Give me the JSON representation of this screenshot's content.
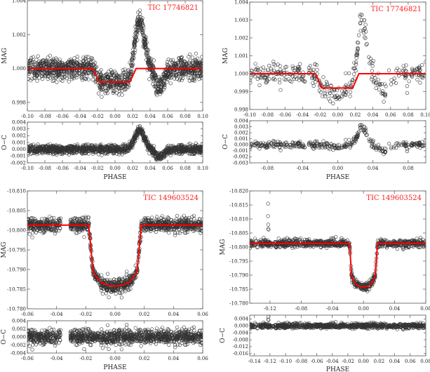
{
  "chart_data": [
    {
      "type": "scatter",
      "title": "TIC 17746821",
      "xlabel": "PHASE",
      "ylabel": "MAG",
      "res_ylabel": "O−C",
      "xlim": [
        -0.1,
        0.1
      ],
      "xticks": [
        -0.1,
        -0.08,
        -0.06,
        -0.04,
        -0.02,
        0.0,
        0.02,
        0.04,
        0.06,
        0.08,
        0.1
      ],
      "res_xticks": [
        -0.1,
        -0.08,
        -0.06,
        -0.04,
        -0.02,
        0.0,
        0.02,
        0.04,
        0.06,
        0.08,
        0.1
      ],
      "xdecimals": 2,
      "ylim": [
        1.004,
        0.9975
      ],
      "yticks": [
        1.004,
        1.002,
        1.0,
        0.998
      ],
      "ydecimals": 3,
      "res_ylim": [
        0.004,
        -0.002
      ],
      "res_yticks": [
        0.004,
        0.003,
        0.002,
        0.001,
        0.0,
        -0.001,
        -0.002
      ],
      "res_ydecimals": 3,
      "model": {
        "x": [
          -0.1,
          -0.025,
          -0.018,
          0.017,
          0.024,
          0.1
        ],
        "y": [
          1.0,
          1.0,
          0.9992,
          0.9992,
          1.0,
          1.0
        ]
      },
      "observed": {
        "n": 1400,
        "noise_sigma": 0.00032,
        "features": [
          {
            "center": 0.028,
            "amplitude": 0.0028,
            "width": 0.0055
          },
          {
            "center": 0.051,
            "amplitude": -0.0011,
            "width": 0.005
          }
        ],
        "gaps": [],
        "outliers": []
      },
      "model_color": "#ff0000"
    },
    {
      "type": "scatter",
      "title": "TIC 17746821",
      "xlabel": "PHASE",
      "ylabel": "MAG",
      "res_ylabel": "O−C",
      "xlim": [
        -0.1,
        0.1
      ],
      "xticks": [
        -0.1,
        -0.08,
        -0.06,
        -0.04,
        -0.02,
        0.0,
        0.02,
        0.04,
        0.06,
        0.08,
        0.1
      ],
      "res_xticks": [
        -0.08,
        -0.04,
        0.0,
        0.04,
        0.08
      ],
      "xdecimals": 2,
      "ylim": [
        1.004,
        0.998
      ],
      "yticks": [
        1.004,
        1.003,
        1.002,
        1.001,
        1.0,
        0.999,
        0.998
      ],
      "ydecimals": 3,
      "res_ylim": [
        0.004,
        -0.003
      ],
      "res_yticks": [
        0.004,
        0.003,
        0.002,
        0.001,
        0.0,
        -0.001,
        -0.002,
        -0.003
      ],
      "res_ydecimals": 3,
      "model": {
        "x": [
          -0.1,
          -0.025,
          -0.018,
          0.017,
          0.024,
          0.1
        ],
        "y": [
          1.0,
          1.0,
          0.9992,
          0.9992,
          1.0,
          1.0
        ]
      },
      "observed": {
        "n": 360,
        "noise_sigma": 0.0003,
        "features": [
          {
            "center": 0.028,
            "amplitude": 0.0028,
            "width": 0.0055
          },
          {
            "center": 0.051,
            "amplitude": -0.0011,
            "width": 0.005
          },
          {
            "center": 0.0,
            "amplitude": -0.0004,
            "width": 0.006
          }
        ],
        "gaps": [],
        "outliers": []
      },
      "model_color": "#ff0000"
    },
    {
      "type": "scatter",
      "title": "TIC 149603524",
      "xlabel": "PHASE",
      "ylabel": "MAG",
      "res_ylabel": "O−C",
      "xlim": [
        -0.06,
        0.06
      ],
      "xticks": [
        -0.06,
        -0.04,
        -0.02,
        0.0,
        0.02,
        0.04,
        0.06
      ],
      "res_xticks": [
        -0.06,
        -0.04,
        -0.02,
        0.0,
        0.02,
        0.04,
        0.06
      ],
      "xdecimals": 2,
      "ylim": [
        -10.81,
        -10.78
      ],
      "yticks": [
        -10.81,
        -10.805,
        -10.8,
        -10.795,
        -10.79,
        -10.785,
        -10.78
      ],
      "ydecimals": 3,
      "res_ylim": [
        0.004,
        -0.004
      ],
      "res_yticks": [
        0.004,
        0.002,
        0.0,
        -0.002,
        -0.004
      ],
      "res_ydecimals": 3,
      "model": {
        "x": [
          -0.06,
          -0.018,
          -0.015,
          -0.01,
          -0.005,
          0,
          0.005,
          0.01,
          0.015,
          0.018,
          0.06
        ],
        "y": [
          -10.8013,
          -10.8013,
          -10.7893,
          -10.7868,
          -10.786,
          -10.7858,
          -10.786,
          -10.7868,
          -10.7893,
          -10.8013,
          -10.8013
        ]
      },
      "observed": {
        "n": 1300,
        "noise_sigma": 0.0009,
        "features": [],
        "gaps": [
          [
            -0.037,
            -0.031
          ]
        ],
        "outliers": []
      },
      "model_color": "#ff0000"
    },
    {
      "type": "scatter",
      "title": "TIC 149603524",
      "xlabel": "PHASE",
      "ylabel": "MAG",
      "res_ylabel": "O−C",
      "xlim": [
        -0.146,
        0.08
      ],
      "xticks": [
        -0.12,
        -0.08,
        -0.04,
        0.0,
        0.04,
        0.08
      ],
      "res_xticks": [
        -0.14,
        -0.12,
        -0.1,
        -0.08,
        -0.06,
        -0.04,
        -0.02,
        0.0,
        0.02,
        0.04,
        0.06,
        0.08
      ],
      "xdecimals": 2,
      "ylim": [
        -10.82,
        -10.78
      ],
      "yticks": [
        -10.82,
        -10.815,
        -10.81,
        -10.805,
        -10.8,
        -10.795,
        -10.79,
        -10.785,
        -10.78
      ],
      "ydecimals": 3,
      "res_ylim": [
        0.0062,
        -0.0173
      ],
      "res_yticks": [
        0.004,
        0.0,
        -0.004,
        -0.008,
        -0.012,
        -0.016
      ],
      "res_ydecimals": 3,
      "model": {
        "x": [
          -0.146,
          -0.018,
          -0.015,
          -0.01,
          -0.005,
          0,
          0.005,
          0.01,
          0.015,
          0.018,
          0.08
        ],
        "y": [
          -10.8013,
          -10.8013,
          -10.7893,
          -10.7868,
          -10.786,
          -10.7858,
          -10.786,
          -10.7868,
          -10.7893,
          -10.8013,
          -10.8013
        ]
      },
      "observed": {
        "n": 950,
        "noise_sigma": 0.0007,
        "features": [],
        "gaps": [],
        "outliers": [
          {
            "x": -0.1225,
            "y": -10.8155
          },
          {
            "x": -0.1225,
            "y": -10.811
          },
          {
            "x": -0.1222,
            "y": -10.808
          },
          {
            "x": -0.1222,
            "y": -10.8065
          },
          {
            "x": -0.1218,
            "y": -10.8062
          }
        ]
      },
      "model_color": "#ff0000"
    }
  ]
}
